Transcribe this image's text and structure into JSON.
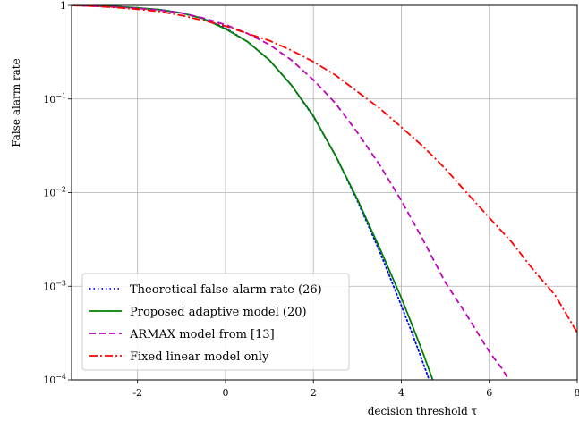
{
  "chart_data": {
    "type": "line",
    "xlabel": "decision threshold τ",
    "ylabel": "False alarm rate",
    "xlim": [
      -3.5,
      8
    ],
    "ylim": [
      0.0001,
      1
    ],
    "yscale": "log",
    "grid": true,
    "legend_position": "lower-left",
    "x_ticks": [
      {
        "value": -2,
        "label": "-2"
      },
      {
        "value": 0,
        "label": "0"
      },
      {
        "value": 2,
        "label": "2"
      },
      {
        "value": 4,
        "label": "4"
      },
      {
        "value": 6,
        "label": "6"
      },
      {
        "value": 8,
        "label": "8"
      }
    ],
    "y_ticks": [
      {
        "value": 0.0001,
        "base": "10",
        "exp": "−4"
      },
      {
        "value": 0.001,
        "base": "10",
        "exp": "−3"
      },
      {
        "value": 0.01,
        "base": "10",
        "exp": "−2"
      },
      {
        "value": 0.1,
        "base": "10",
        "exp": "−1"
      },
      {
        "value": 1,
        "base": "1",
        "exp": ""
      }
    ],
    "series": [
      {
        "name": "Theoretical false-alarm rate (26)",
        "color": "#0000ff",
        "style": "dotted",
        "x": [
          -3.5,
          -3,
          -2.5,
          -2,
          -1.5,
          -1,
          -0.5,
          0,
          0.5,
          1,
          1.5,
          2,
          2.5,
          3,
          3.5,
          4,
          4.25,
          4.5,
          4.75
        ],
        "y": [
          1.0,
          0.99,
          0.97,
          0.94,
          0.9,
          0.83,
          0.72,
          0.57,
          0.41,
          0.26,
          0.14,
          0.065,
          0.025,
          0.0082,
          0.0024,
          0.00062,
          0.00031,
          0.00015,
          7e-05
        ]
      },
      {
        "name": "Proposed adaptive model (20)",
        "color": "#008000",
        "style": "solid",
        "x": [
          -3.5,
          -3,
          -2.5,
          -2,
          -1.5,
          -1,
          -0.5,
          0,
          0.5,
          1,
          1.5,
          2,
          2.5,
          3,
          3.5,
          4,
          4.25,
          4.5,
          4.75
        ],
        "y": [
          1.0,
          0.99,
          0.97,
          0.94,
          0.9,
          0.83,
          0.72,
          0.56,
          0.41,
          0.26,
          0.14,
          0.066,
          0.025,
          0.0085,
          0.0026,
          0.00075,
          0.00038,
          0.00019,
          9e-05
        ]
      },
      {
        "name": "ARMAX model from [13]",
        "color": "#bf00bf",
        "style": "dashed",
        "x": [
          -3.5,
          -3,
          -2.5,
          -2,
          -1.5,
          -1,
          -0.5,
          0,
          0.5,
          1,
          1.5,
          2,
          2.5,
          3,
          3.5,
          4,
          4.5,
          5,
          5.5,
          6,
          6.3,
          6.5
        ],
        "y": [
          1.0,
          0.98,
          0.96,
          0.93,
          0.89,
          0.83,
          0.73,
          0.62,
          0.5,
          0.38,
          0.26,
          0.16,
          0.09,
          0.044,
          0.02,
          0.0082,
          0.0031,
          0.0011,
          0.00048,
          0.0002,
          0.00013,
          9e-05
        ]
      },
      {
        "name": "Fixed linear model only",
        "color": "#ff0000",
        "style": "dashdot",
        "x": [
          -3.5,
          -3,
          -2.5,
          -2,
          -1.5,
          -1,
          -0.5,
          0,
          0.5,
          1,
          1.5,
          2,
          2.5,
          3,
          3.5,
          4,
          4.5,
          5,
          5.5,
          6,
          6.5,
          7,
          7.5,
          8
        ],
        "y": [
          1.0,
          0.98,
          0.95,
          0.91,
          0.86,
          0.78,
          0.69,
          0.6,
          0.5,
          0.42,
          0.33,
          0.25,
          0.18,
          0.12,
          0.08,
          0.05,
          0.031,
          0.018,
          0.0098,
          0.0054,
          0.003,
          0.0015,
          0.0008,
          0.00032
        ]
      }
    ]
  }
}
